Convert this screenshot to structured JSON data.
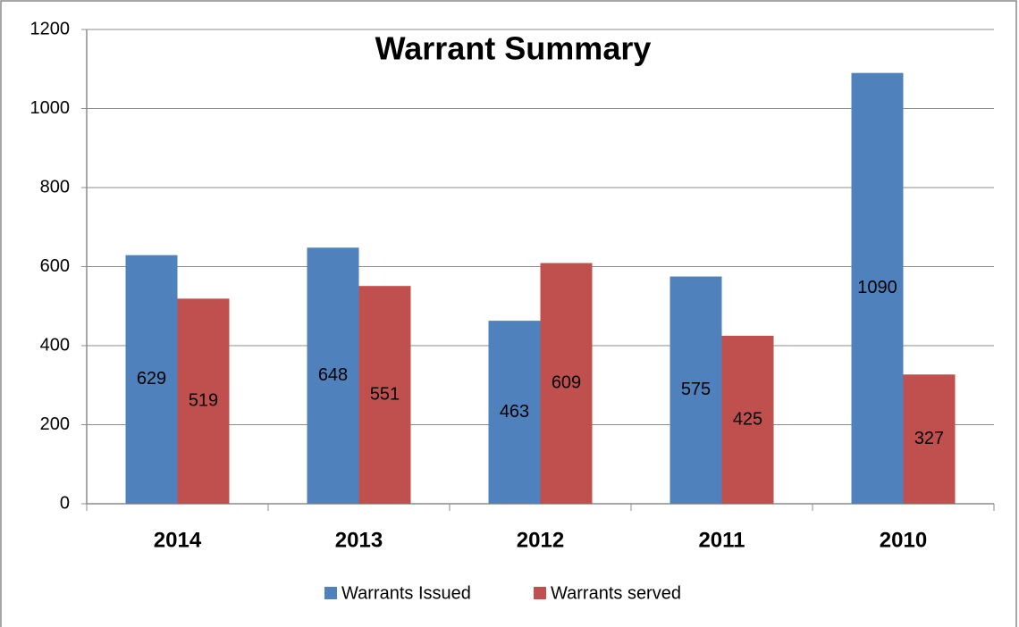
{
  "chart_data": {
    "type": "bar",
    "title": "Warrant Summary",
    "categories": [
      "2014",
      "2013",
      "2012",
      "2011",
      "2010"
    ],
    "series": [
      {
        "name": "Warrants Issued",
        "color": "#4f81bd",
        "values": [
          629,
          648,
          463,
          575,
          1090
        ]
      },
      {
        "name": "Warrants served",
        "color": "#c0504d",
        "values": [
          519,
          551,
          609,
          425,
          327
        ]
      }
    ],
    "ylim": [
      0,
      1200
    ],
    "yticks": [
      0,
      200,
      400,
      600,
      800,
      1000,
      1200
    ],
    "grid": true,
    "legend": "bottom",
    "data_labels": true
  }
}
